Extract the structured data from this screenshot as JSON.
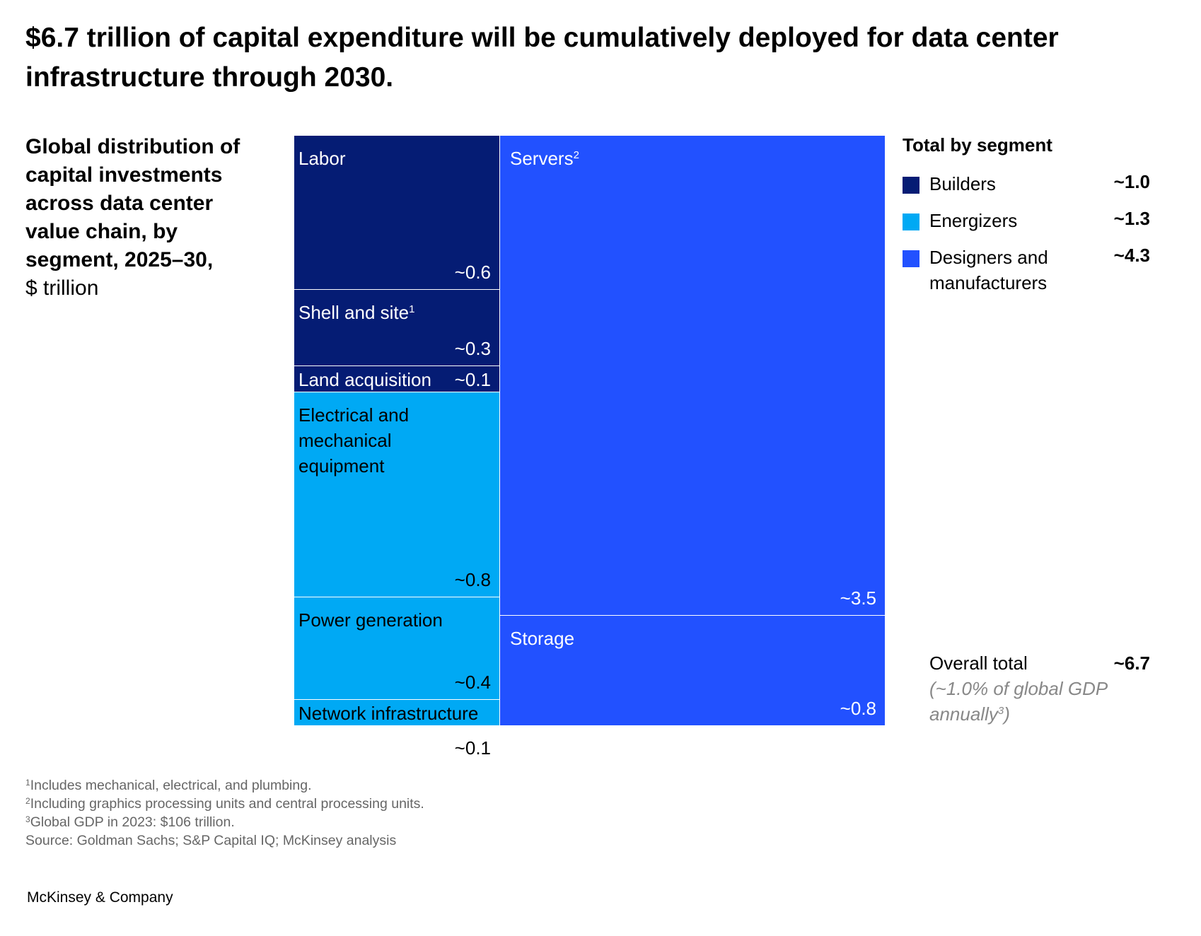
{
  "title": "$6.7 trillion of capital expenditure will be cumulatively deployed for data center infrastructure through 2030.",
  "subtitle": {
    "bold": "Global distribution of capital investments across data center value chain, by segment, 2025–30,",
    "unit": "$ trillion"
  },
  "colors": {
    "builders": "#051c74",
    "energizers": "#00a9f4",
    "designers": "#2251ff"
  },
  "chart_data": {
    "type": "treemap",
    "unit": "$ trillion",
    "cells": [
      {
        "label": "Labor",
        "sup": "",
        "value_label": "~0.6",
        "value": 0.6,
        "segment": "Builders"
      },
      {
        "label": "Shell and site",
        "sup": "1",
        "value_label": "~0.3",
        "value": 0.3,
        "segment": "Builders"
      },
      {
        "label": "Land acquisition",
        "sup": "",
        "value_label": "~0.1",
        "value": 0.1,
        "segment": "Builders"
      },
      {
        "label": "Electrical and mechanical equipment",
        "sup": "",
        "value_label": "~0.8",
        "value": 0.8,
        "segment": "Energizers"
      },
      {
        "label": "Power generation",
        "sup": "",
        "value_label": "~0.4",
        "value": 0.4,
        "segment": "Energizers"
      },
      {
        "label": "Network infrastructure",
        "sup": "",
        "value_label": "~0.1",
        "value": 0.1,
        "segment": "Energizers"
      },
      {
        "label": "Servers",
        "sup": "2",
        "value_label": "~3.5",
        "value": 3.5,
        "segment": "Designers and manufacturers"
      },
      {
        "label": "Storage",
        "sup": "",
        "value_label": "~0.8",
        "value": 0.8,
        "segment": "Designers and manufacturers"
      }
    ],
    "legend": {
      "title": "Total by segment",
      "items": [
        {
          "label": "Builders",
          "value": "~1.0"
        },
        {
          "label": "Energizers",
          "value": "~1.3"
        },
        {
          "label": "Designers and manufacturers",
          "value": "~4.3"
        }
      ],
      "total_label": "Overall total",
      "total_value": "~6.7",
      "total_note": "(~1.0% of global GDP annually",
      "total_note_sup": "3",
      "total_note_end": ")"
    }
  },
  "footnotes": [
    {
      "sup": "1",
      "text": "Includes mechanical, electrical, and plumbing."
    },
    {
      "sup": "2",
      "text": "Including graphics processing units and central processing units."
    },
    {
      "sup": "3",
      "text": "Global GDP in 2023: $106 trillion."
    },
    {
      "sup": "",
      "text": " Source: Goldman Sachs; S&P Capital IQ; McKinsey analysis"
    }
  ],
  "brand": "McKinsey & Company"
}
